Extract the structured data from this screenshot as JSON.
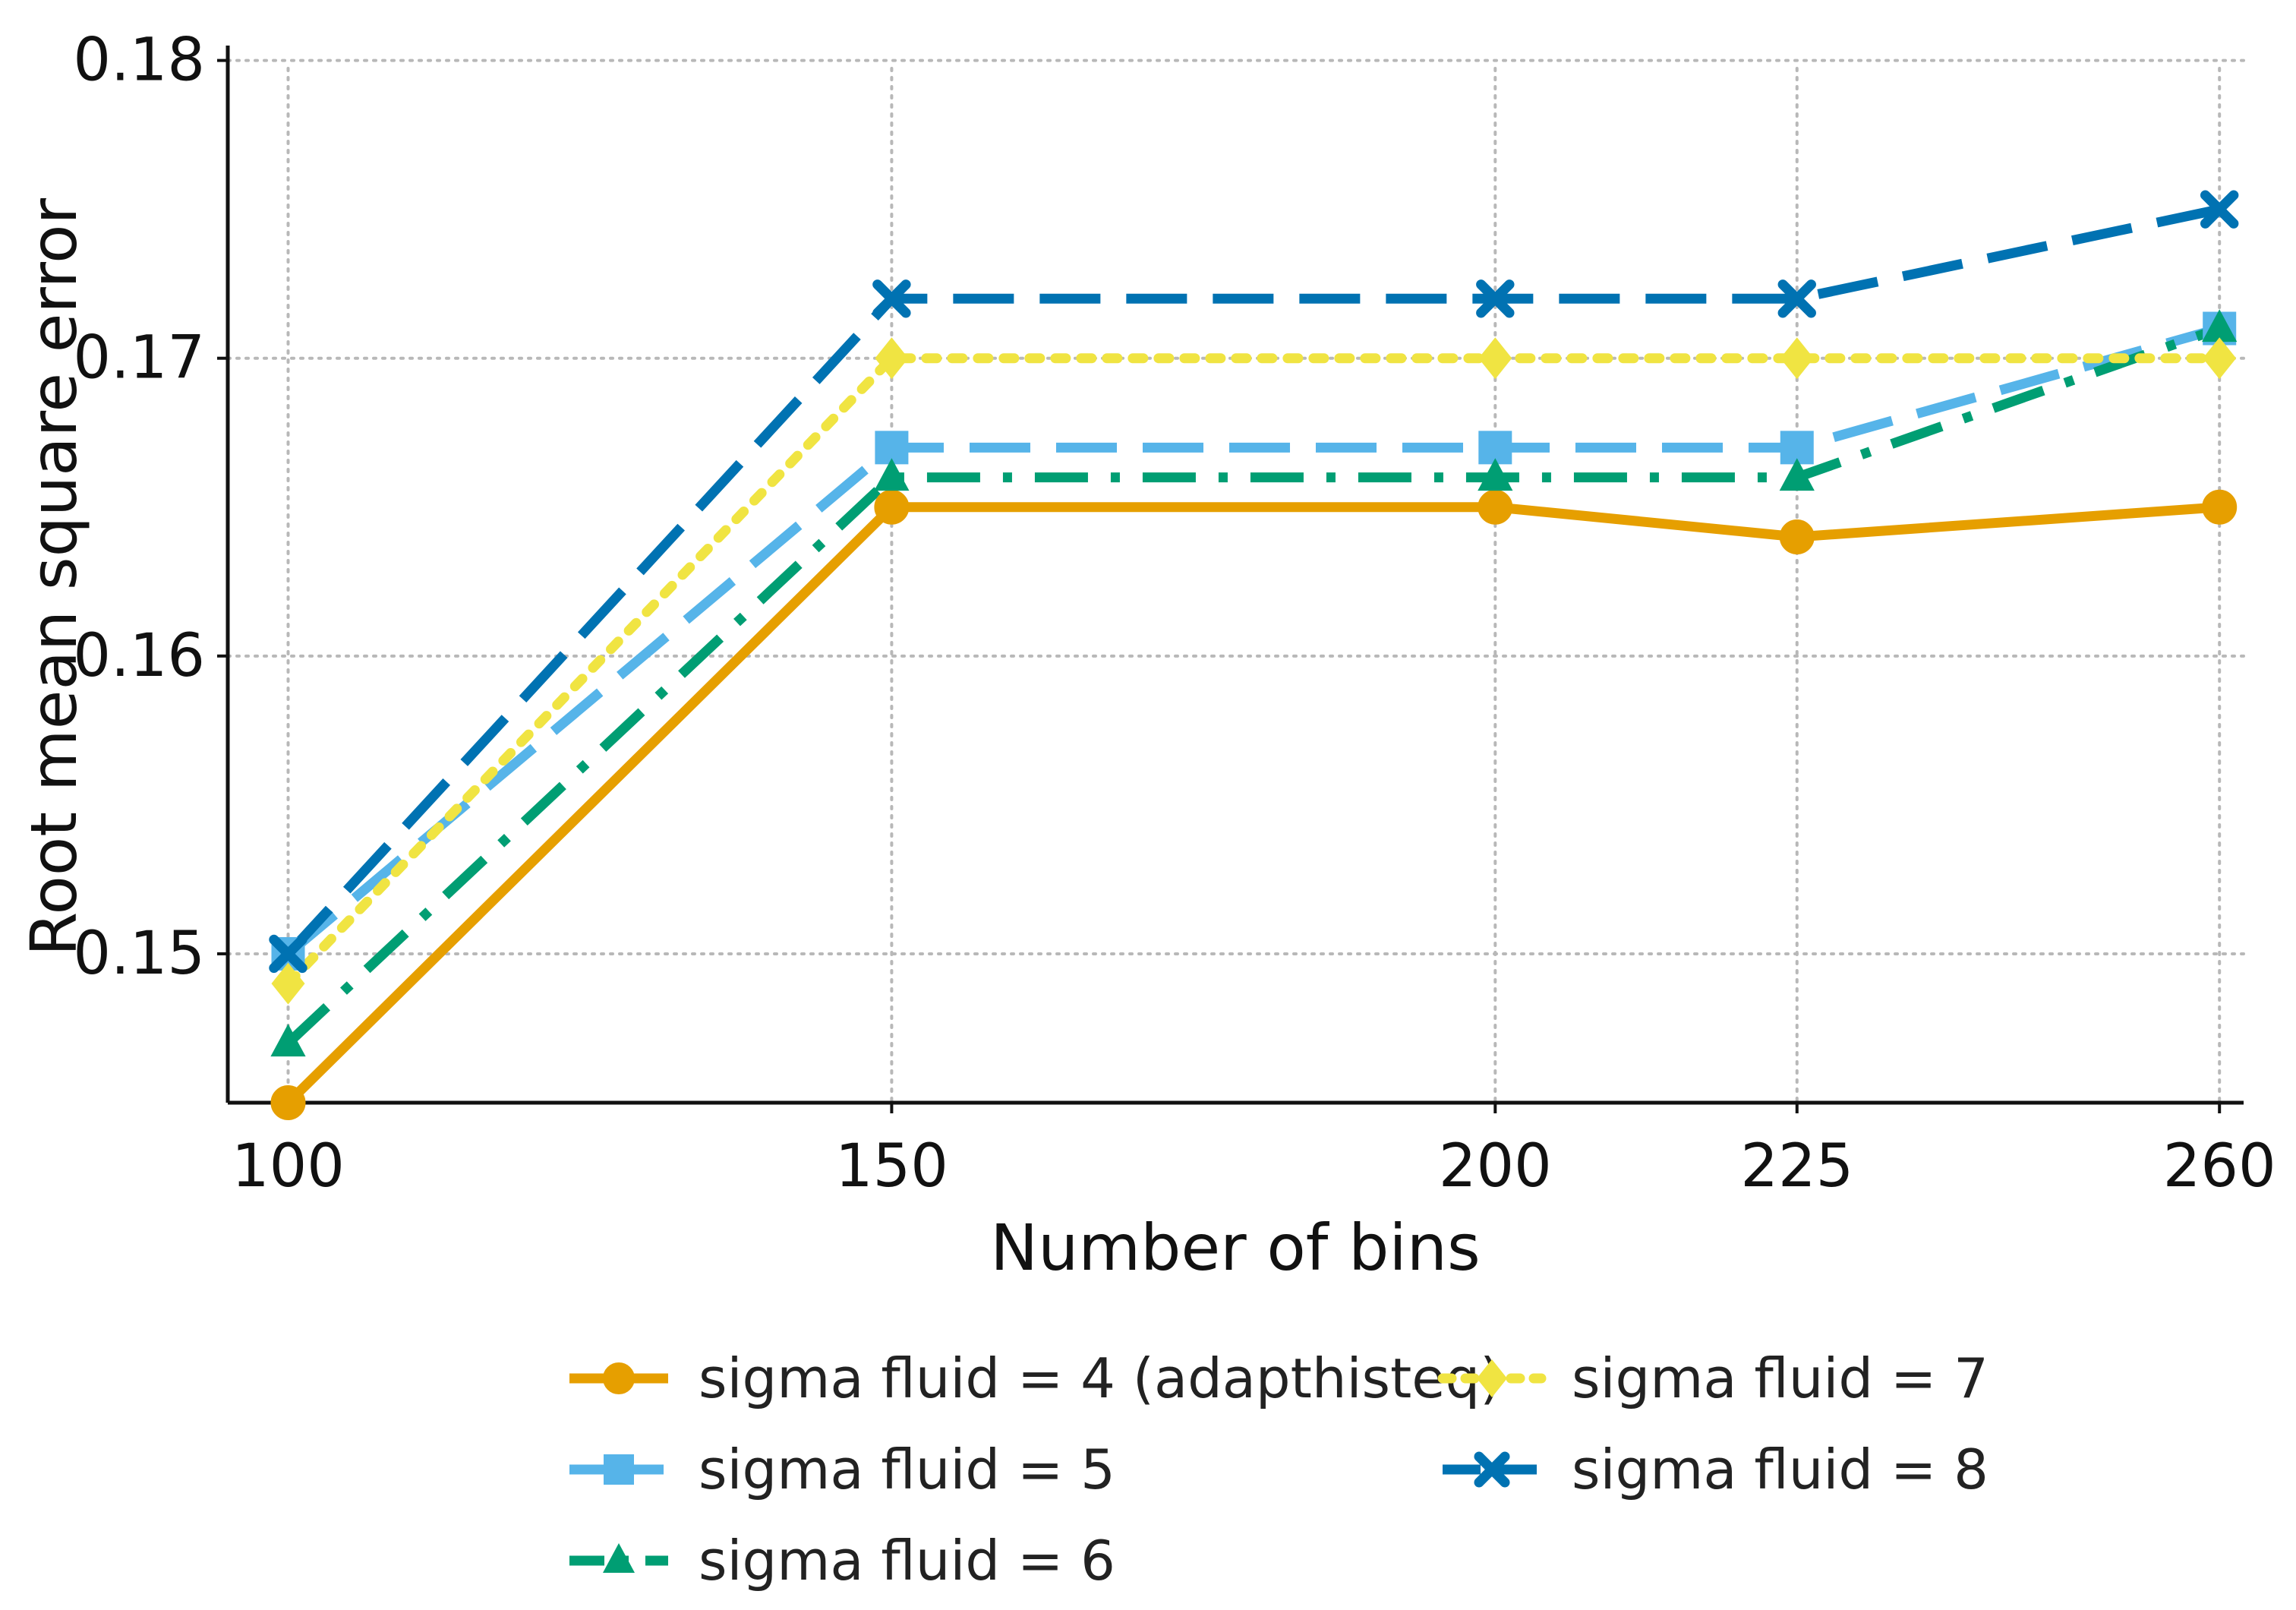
{
  "chart_data": {
    "type": "line",
    "title": "",
    "xlabel": "Number of bins",
    "ylabel": "Root mean square error",
    "x": [
      100,
      150,
      200,
      225,
      260
    ],
    "x_tick_labels": [
      "100",
      "150",
      "200",
      "225",
      "260"
    ],
    "y_ticks": [
      0.15,
      0.16,
      0.17,
      0.18
    ],
    "y_tick_labels": [
      "0.15",
      "0.16",
      "0.17",
      "0.18"
    ],
    "xlim": [
      95,
      262
    ],
    "ylim": [
      0.145,
      0.1805
    ],
    "grid": true,
    "legend_position": "bottom",
    "series": [
      {
        "name": "sigma fluid = 4 (adapthisteq)",
        "values": [
          0.145,
          0.165,
          0.165,
          0.164,
          0.165
        ],
        "color": "#E69F00",
        "marker": "circle",
        "line_style": "solid"
      },
      {
        "name": "sigma fluid = 5",
        "values": [
          0.15,
          0.167,
          0.167,
          0.167,
          0.171
        ],
        "color": "#56B4E9",
        "marker": "square",
        "line_style": "dashed"
      },
      {
        "name": "sigma fluid = 6",
        "values": [
          0.147,
          0.166,
          0.166,
          0.166,
          0.171
        ],
        "color": "#009E73",
        "marker": "triangle",
        "line_style": "dashdot"
      },
      {
        "name": "sigma fluid = 7",
        "values": [
          0.149,
          0.17,
          0.17,
          0.17,
          0.17
        ],
        "color": "#F0E442",
        "marker": "diamond",
        "line_style": "dotted"
      },
      {
        "name": "sigma fluid = 8",
        "values": [
          0.15,
          0.172,
          0.172,
          0.172,
          0.175
        ],
        "color": "#0072B2",
        "marker": "x",
        "line_style": "dashed"
      }
    ]
  }
}
